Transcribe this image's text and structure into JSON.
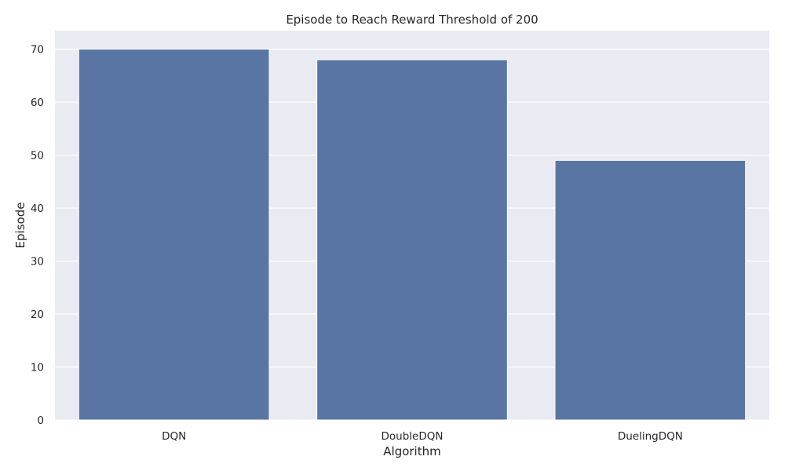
{
  "chart_data": {
    "type": "bar",
    "title": "Episode to Reach Reward Threshold of 200",
    "xlabel": "Algorithm",
    "ylabel": "Episode",
    "categories": [
      "DQN",
      "DoubleDQN",
      "DuelingDQN"
    ],
    "values": [
      70,
      68,
      49
    ],
    "ylim": [
      0,
      73.5
    ],
    "yticks": [
      "0",
      "10",
      "20",
      "30",
      "40",
      "50",
      "60",
      "70"
    ],
    "grid": true,
    "legend": "none",
    "colors": {
      "bar": "#5975a4",
      "plot_background": "#eaeaf2",
      "grid": "#ffffff",
      "text": "#262626"
    }
  }
}
